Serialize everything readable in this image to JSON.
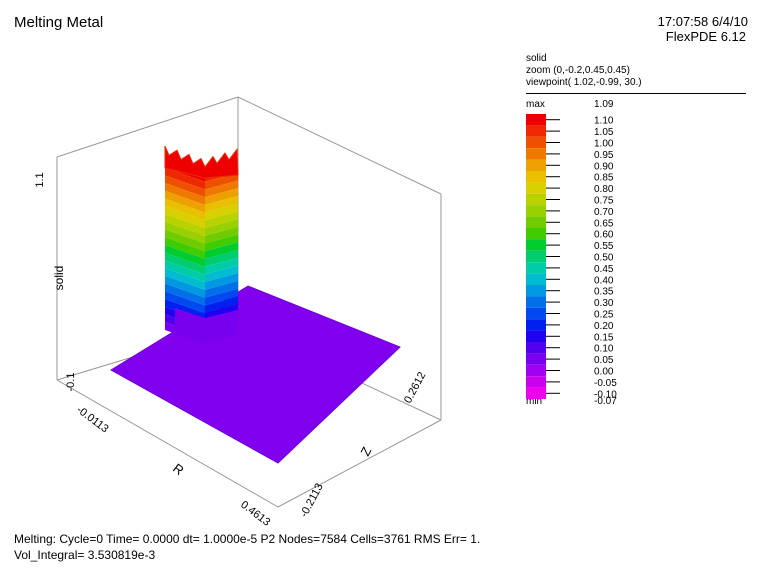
{
  "header": {
    "title": "Melting Metal",
    "timestamp": "17:07:58 6/4/10",
    "version": "FlexPDE 6.12"
  },
  "legend": {
    "variable": "solid",
    "zoom": "zoom (0,-0.2,0.45,0.45)",
    "viewpoint": "viewpoint( 1.02,-0.99, 30.)",
    "max_label": "max",
    "max_value": "1.09",
    "min_label": "min",
    "min_value": "-0.07",
    "levels": [
      "1.10",
      "1.05",
      "1.00",
      "0.95",
      "0.90",
      "0.85",
      "0.80",
      "0.75",
      "0.70",
      "0.65",
      "0.60",
      "0.55",
      "0.50",
      "0.45",
      "0.40",
      "0.35",
      "0.30",
      "0.25",
      "0.20",
      "0.15",
      "0.10",
      "0.05",
      "0.00",
      "-0.05",
      "-0.10"
    ],
    "colors": [
      "#ee0000",
      "#ee2800",
      "#ee5000",
      "#ee7800",
      "#eea000",
      "#e8c000",
      "#d8d000",
      "#b8d200",
      "#98d000",
      "#70cc00",
      "#40cc00",
      "#00cc30",
      "#00cc70",
      "#00cca8",
      "#00bcd0",
      "#0098e0",
      "#0070e8",
      "#0048f0",
      "#0020f0",
      "#2000f0",
      "#5000ee",
      "#7800ee",
      "#a000ee",
      "#c800ee",
      "#ee00ee"
    ]
  },
  "axes": {
    "vertical": {
      "label": "solid",
      "max_tick": "1.1",
      "min_tick": "-0.1"
    },
    "r": {
      "label": "R",
      "start_tick": "-0.0113",
      "end_tick": "0.4613"
    },
    "z": {
      "label": "Z",
      "start_tick": "-0.2113",
      "end_tick": "0.2612"
    }
  },
  "chart_data": {
    "type": "surface3d",
    "title": "Melting Metal",
    "value_label": "solid",
    "value_range": [
      -0.07,
      1.09
    ],
    "r_range": [
      -0.0113,
      0.4613
    ],
    "z_range": [
      -0.2113,
      0.2612
    ],
    "description_values": {
      "solid_region_value": 1.09,
      "melted_region_value": 0.0
    }
  },
  "footer": {
    "line1": "Melting:  Cycle=0  Time= 0.0000  dt= 1.0000e-5  P2  Nodes=7584 Cells=3761 RMS Err= 1.",
    "line2": "Vol_Integral=  3.530819e-3"
  }
}
